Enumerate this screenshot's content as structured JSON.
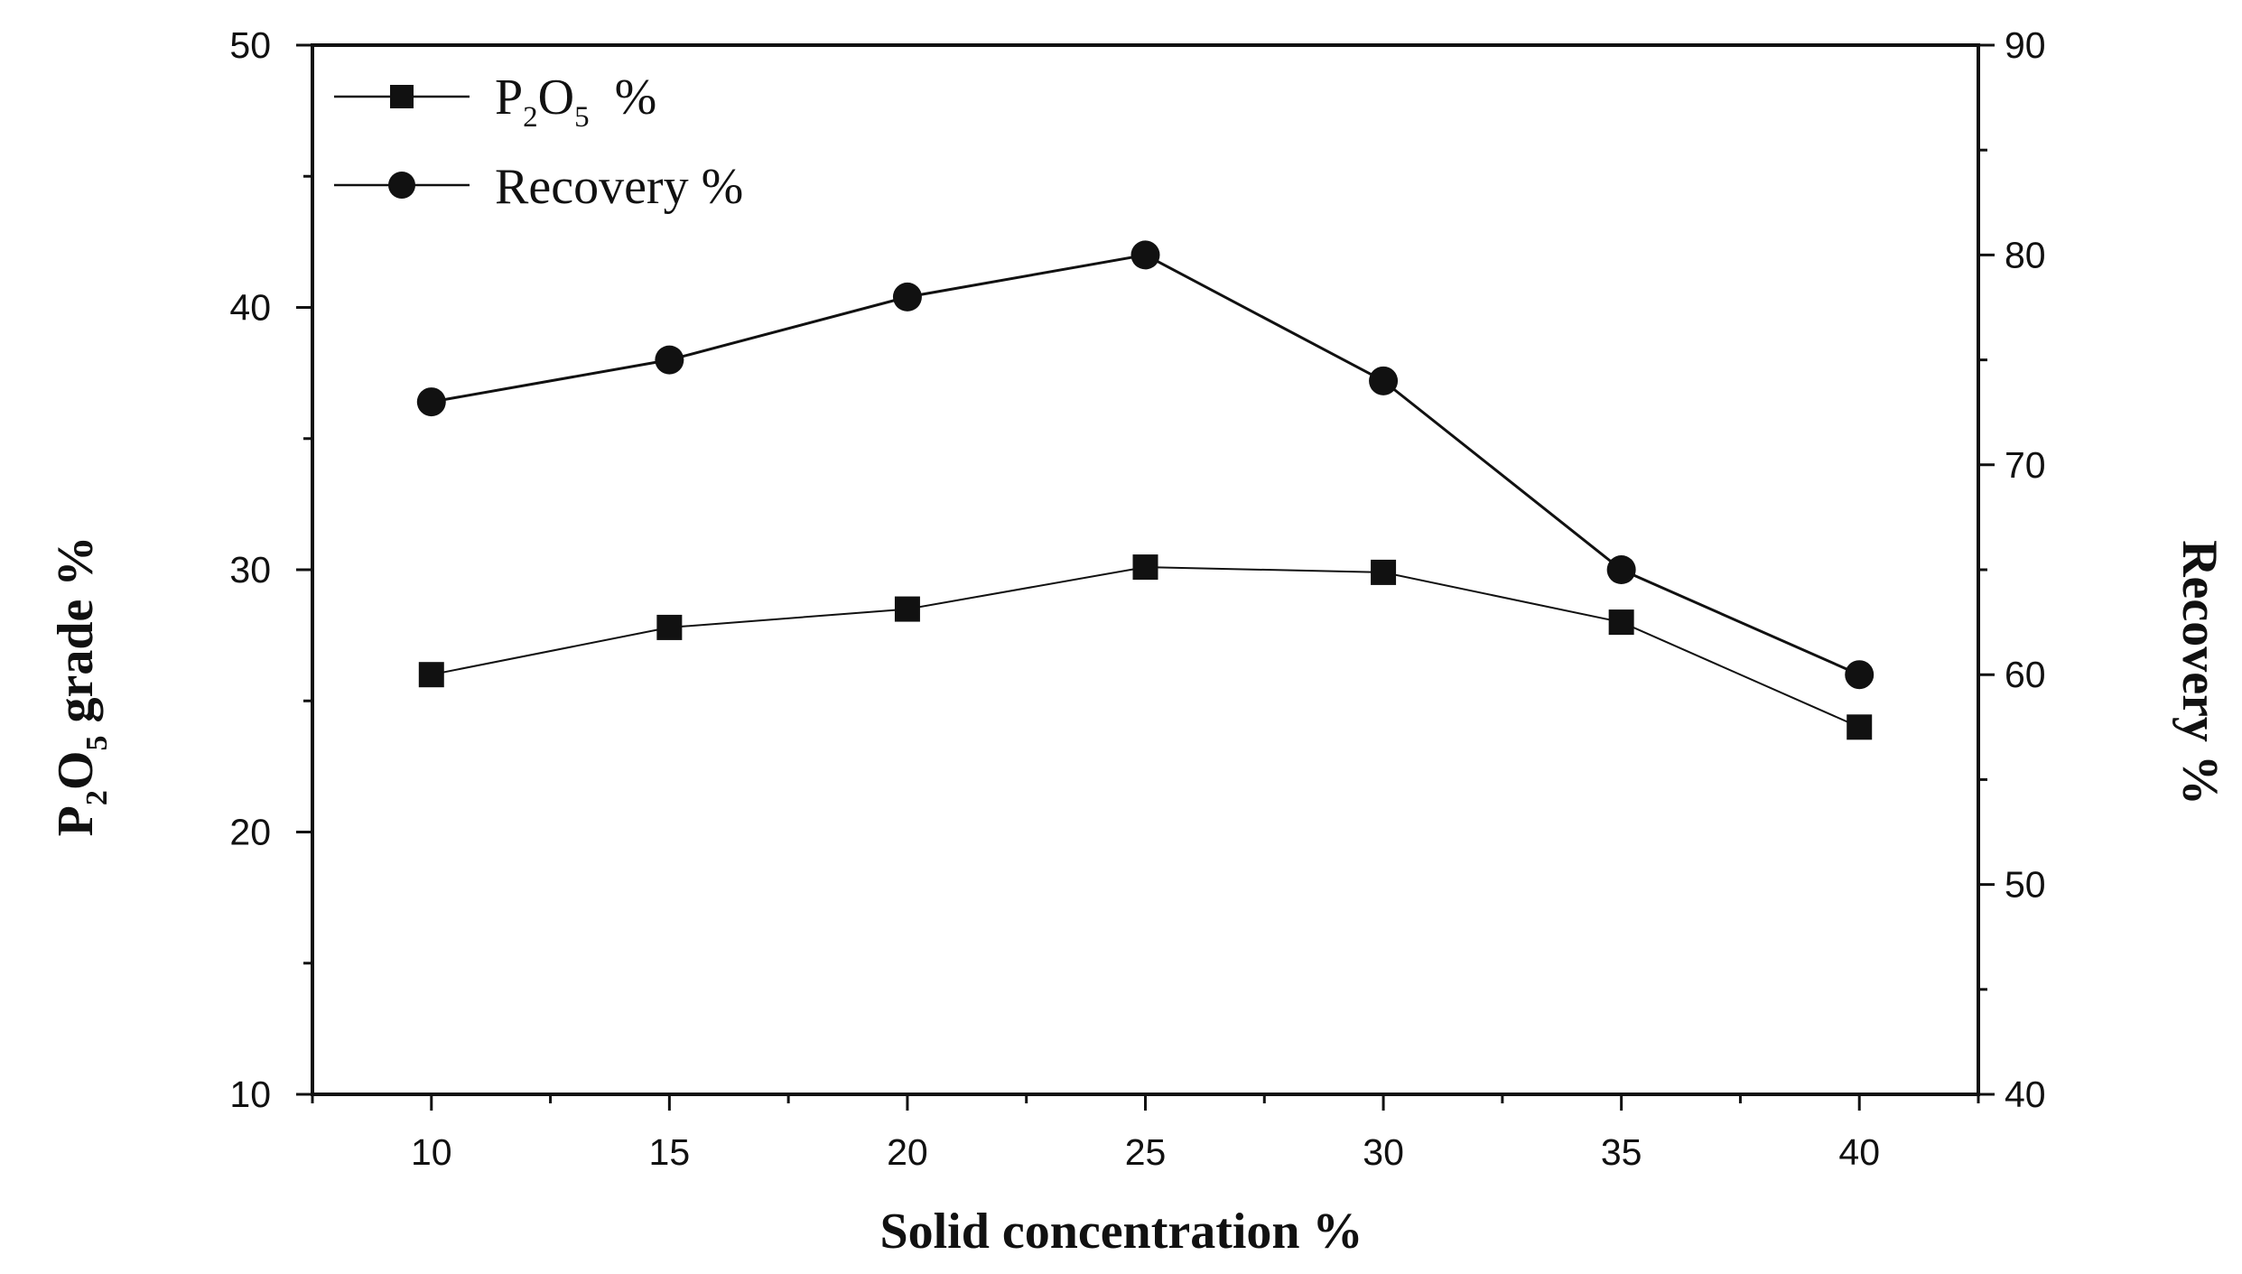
{
  "chart_data": {
    "type": "line",
    "x": [
      10,
      15,
      20,
      25,
      30,
      35,
      40
    ],
    "xlabel": "Solid concentration %",
    "xlim": [
      7.5,
      42.5
    ],
    "xticks": [
      "10",
      "15",
      "20",
      "25",
      "30",
      "35",
      "40"
    ],
    "ylabel_left": {
      "main": "P",
      "sub1": "2",
      "mid": "O",
      "sub2": "5",
      "tail": " grade %"
    },
    "ylim_left": [
      10,
      50
    ],
    "yticks_left": [
      "10",
      "20",
      "30",
      "40",
      "50"
    ],
    "ylabel_right": "Recovery %",
    "ylim_right": [
      40,
      90
    ],
    "yticks_right": [
      "40",
      "50",
      "60",
      "70",
      "80",
      "90"
    ],
    "series": [
      {
        "name": "P2O5 %",
        "legend": {
          "main": "P",
          "sub1": "2",
          "mid": "O",
          "sub2": "5",
          "tail": "  %"
        },
        "axis": "left",
        "marker": "square",
        "values": [
          26,
          27.8,
          28.5,
          30.1,
          29.9,
          28,
          24
        ]
      },
      {
        "name": "Recovery %",
        "legend": {
          "main": "Recovery %"
        },
        "axis": "right",
        "marker": "circle",
        "values": [
          73,
          75,
          78,
          80,
          74,
          65,
          60
        ]
      }
    ],
    "grid": false,
    "legend_position": "top-left"
  }
}
